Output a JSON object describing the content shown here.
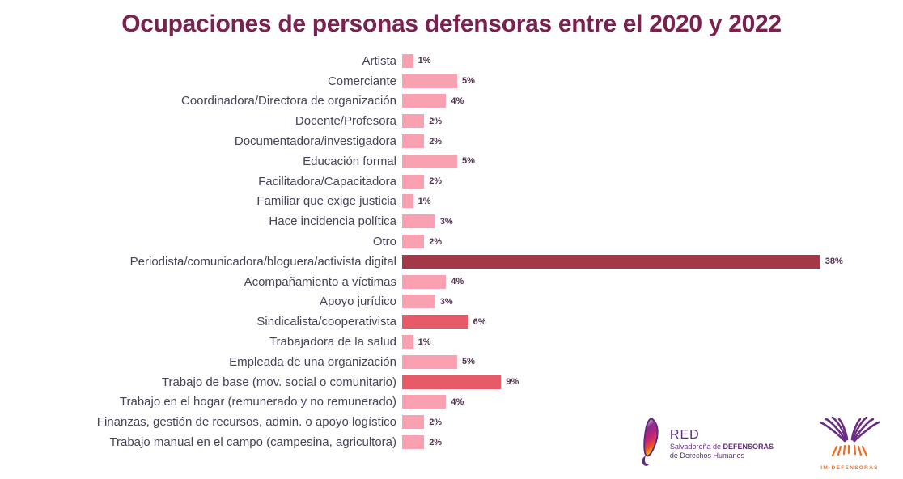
{
  "title": "Ocupaciones de personas defensoras entre el 2020 y 2022",
  "colors": {
    "background": "#FFFFFF",
    "title": "#7A2150",
    "category_label": "#474459",
    "value_label": "#533051",
    "bar_low": "#F9A1B1",
    "bar_mid": "#E75A68",
    "bar_high": "#A23848",
    "logo_purple": "#5F2B7B",
    "logo_orange": "#F26B21"
  },
  "chart_data": {
    "type": "bar",
    "orientation": "horizontal",
    "title": "Ocupaciones de personas defensoras entre el 2020 y 2022",
    "xlabel": "",
    "ylabel": "",
    "xlim": [
      0,
      40
    ],
    "grid": false,
    "legend": false,
    "categories": [
      "Artista",
      "Comerciante",
      "Coordinadora/Directora de organización",
      "Docente/Profesora",
      "Documentadora/investigadora",
      "Educación formal",
      "Facilitadora/Capacitadora",
      "Familiar que exige justicia",
      "Hace incidencia política",
      "Otro",
      "Periodista/comunicadora/bloguera/activista digital",
      "Acompañamiento a víctimas",
      "Apoyo jurídico",
      "Sindicalista/cooperativista",
      "Trabajadora de la salud",
      "Empleada de una organización",
      "Trabajo de base (mov. social o comunitario)",
      "Trabajo en el hogar (remunerado y no remunerado)",
      "Finanzas, gestión de recursos, admin. o apoyo logístico",
      "Trabajo manual en el campo (campesina, agricultora)"
    ],
    "values": [
      1,
      5,
      4,
      2,
      2,
      5,
      2,
      1,
      3,
      2,
      38,
      4,
      3,
      6,
      1,
      5,
      9,
      4,
      2,
      2
    ],
    "value_labels": [
      "1%",
      "5%",
      "4%",
      "2%",
      "2%",
      "5%",
      "2%",
      "1%",
      "3%",
      "2%",
      "38%",
      "4%",
      "3%",
      "6%",
      "1%",
      "5%",
      "9%",
      "4%",
      "2%",
      "2%"
    ],
    "bar_colors": [
      "#F9A1B1",
      "#F9A1B1",
      "#F9A1B1",
      "#F9A1B1",
      "#F9A1B1",
      "#F9A1B1",
      "#F9A1B1",
      "#F9A1B1",
      "#F9A1B1",
      "#F9A1B1",
      "#A23848",
      "#F9A1B1",
      "#F9A1B1",
      "#E75A68",
      "#F9A1B1",
      "#F9A1B1",
      "#E75A68",
      "#F9A1B1",
      "#F9A1B1",
      "#F9A1B1"
    ]
  },
  "logos": {
    "red": {
      "line1": "RED",
      "line2_regular": "Salvadoreña de ",
      "line2_bold": "DEFENSORAS",
      "line3": "de Derechos Humanos"
    },
    "im": {
      "caption": "IM-DEFENSORAS"
    }
  }
}
